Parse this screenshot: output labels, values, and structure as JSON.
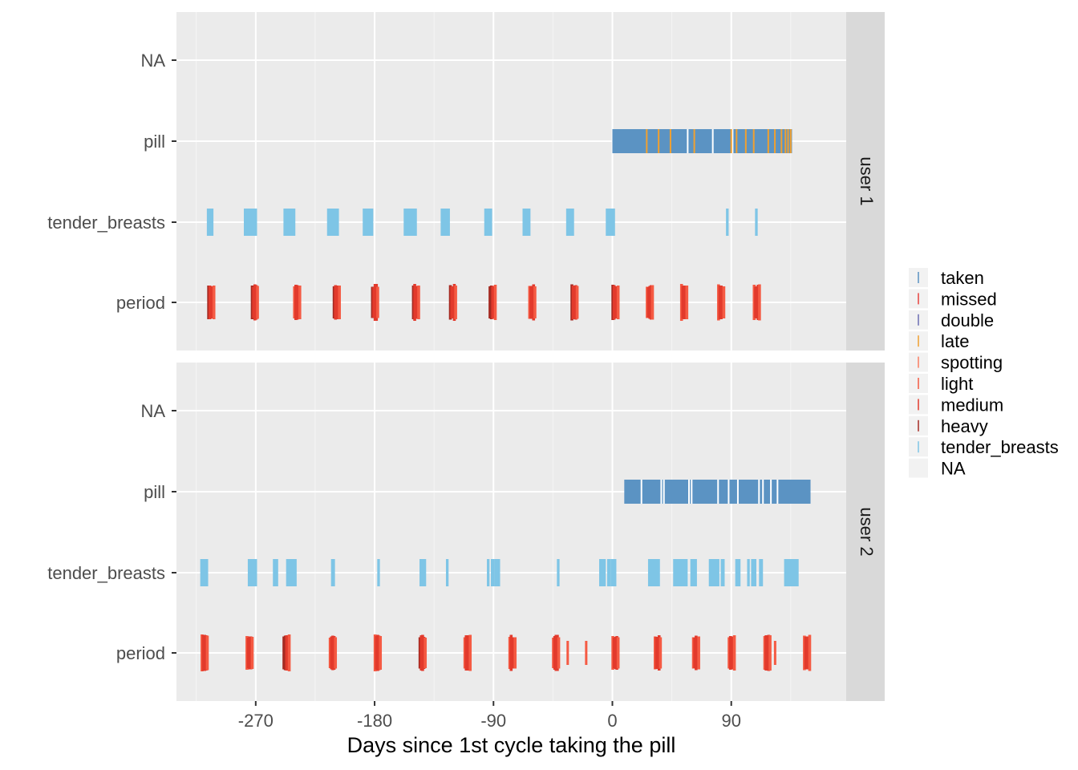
{
  "chart_data": {
    "type": "event-timeline",
    "xlabel": "Days since 1st cycle taking the pill",
    "x_ticks": [
      -270,
      -180,
      -90,
      0,
      90
    ],
    "x_tick_labels": [
      "-270",
      "-180",
      "-90",
      "0",
      "90"
    ],
    "xlim": [
      -330,
      177
    ],
    "categories": [
      "NA",
      "pill",
      "tender_breasts",
      "period"
    ],
    "grid": true,
    "legend_position": "right",
    "legend": [
      {
        "label": "taken",
        "color": "#5b93c3"
      },
      {
        "label": "missed",
        "color": "#e7413d"
      },
      {
        "label": "double",
        "color": "#6b6cb3"
      },
      {
        "label": "late",
        "color": "#f0a030"
      },
      {
        "label": "spotting",
        "color": "#fb7d61"
      },
      {
        "label": "light",
        "color": "#f55a43"
      },
      {
        "label": "medium",
        "color": "#e23a2c"
      },
      {
        "label": "heavy",
        "color": "#a52a22"
      },
      {
        "label": "tender_breasts",
        "color": "#7ec5e6"
      },
      {
        "label": "NA",
        "color": "#ececec"
      }
    ],
    "panels": [
      {
        "strip": "user 1",
        "pill_taken_range": [
          0,
          136
        ],
        "pill_late_days": [
          26,
          35,
          44,
          62,
          90,
          94,
          101,
          107,
          118,
          123,
          128,
          131,
          133,
          135
        ],
        "pill_gap_days": [
          57,
          76,
          91
        ],
        "tender_breasts": [
          [
            -307,
            -303
          ],
          [
            -279,
            -270
          ],
          [
            -249,
            -241
          ],
          [
            -216,
            -208
          ],
          [
            -189,
            -182
          ],
          [
            -158,
            -149
          ],
          [
            -130,
            -124
          ],
          [
            -97,
            -92
          ],
          [
            -68,
            -63
          ],
          [
            -35,
            -30
          ],
          [
            -5,
            1
          ],
          [
            86,
            87
          ],
          [
            108,
            109
          ]
        ],
        "period_starts": [
          -306,
          -273,
          -241,
          -211,
          -182,
          -151,
          -123,
          -93,
          -63,
          -31,
          0,
          26,
          52,
          80,
          107
        ],
        "period_heavy_days": [
          -306,
          -273,
          -211,
          -182,
          -151,
          -123,
          -93,
          -92,
          -31,
          0
        ]
      },
      {
        "strip": "user 2",
        "pill_taken_range": [
          9,
          150
        ],
        "pill_gap_days": [
          22,
          37,
          39,
          58,
          60,
          80,
          88,
          95,
          111,
          114,
          120,
          125
        ],
        "tender_breasts": [
          [
            -312,
            -307
          ],
          [
            -276,
            -270
          ],
          [
            -257,
            -254
          ],
          [
            -247,
            -240
          ],
          [
            -213,
            -211
          ],
          [
            -178,
            -177
          ],
          [
            -146,
            -142
          ],
          [
            -126,
            -125
          ],
          [
            -95,
            -94
          ],
          [
            -92,
            -90
          ],
          [
            -89,
            -86
          ],
          [
            -42,
            -41
          ],
          [
            -10,
            -6
          ],
          [
            -4,
            -2
          ],
          [
            -1,
            2
          ],
          [
            27,
            35
          ],
          [
            46,
            56
          ],
          [
            59,
            63
          ],
          [
            73,
            80
          ],
          [
            82,
            84
          ],
          [
            93,
            96
          ],
          [
            102,
            103
          ],
          [
            105,
            108
          ],
          [
            111,
            113
          ],
          [
            130,
            140
          ]
        ],
        "period_starts": [
          -311,
          -277,
          -249,
          -214,
          -180,
          -146,
          -112,
          -78,
          -45,
          0,
          32,
          61,
          88,
          115,
          145
        ],
        "period_extra_days": [
          -34,
          -20,
          123
        ],
        "period_heavy_days": [
          -249,
          -248,
          -147,
          -146
        ]
      }
    ]
  }
}
